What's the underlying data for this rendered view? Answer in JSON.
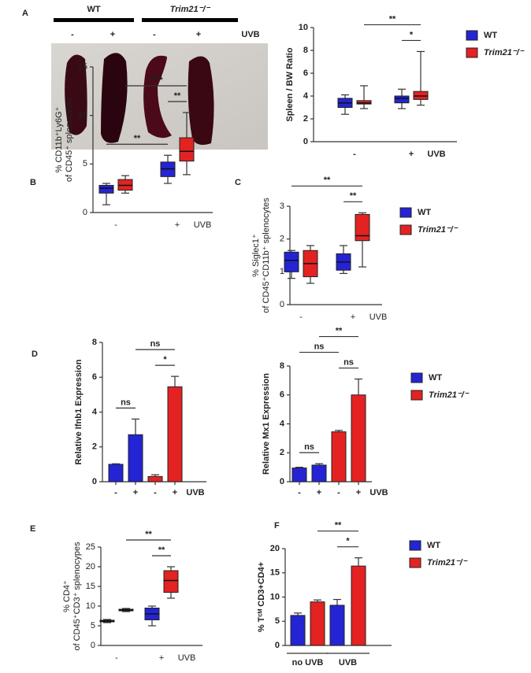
{
  "photo": {
    "groups": [
      "WT",
      "Trim21⁻/⁻"
    ],
    "treatments": [
      "-",
      "+",
      "-",
      "+"
    ],
    "label": "UVB"
  },
  "chart_data": [
    {
      "panel": "A",
      "type": "box",
      "ylabel": [
        "Spleen / BW Ratio"
      ],
      "xlabel": "UVB",
      "categories": [
        "-",
        "+"
      ],
      "ylim": [
        0,
        10
      ],
      "yticks": [
        0,
        2,
        4,
        6,
        8,
        10
      ],
      "series": [
        {
          "color": "#2424d4",
          "boxes": [
            [
              2.4,
              3.0,
              3.4,
              3.8,
              4.1
            ],
            [
              2.9,
              3.4,
              3.8,
              4.0,
              4.6
            ]
          ]
        },
        {
          "color": "#e42222",
          "boxes": [
            [
              2.9,
              3.3,
              3.4,
              3.6,
              4.9
            ],
            [
              3.2,
              3.7,
              4.0,
              4.4,
              7.9
            ]
          ]
        }
      ],
      "legend": [
        {
          "name": "WT",
          "color": "#2424d4"
        },
        {
          "name": "Trim21⁻/⁻",
          "color": "#e42222"
        }
      ],
      "annotations": [
        {
          "text": "*",
          "span": [
            2,
            3
          ]
        },
        {
          "text": "**",
          "span": [
            1,
            3
          ]
        }
      ]
    },
    {
      "panel": "B",
      "type": "box",
      "ylabel": [
        "% CD11b⁺Ly6G⁺",
        "of CD45⁺ splenocytes"
      ],
      "xlabel": "UVB",
      "categories": [
        "-",
        "+"
      ],
      "ylim": [
        0,
        15
      ],
      "yticks": [
        0,
        5,
        10,
        15
      ],
      "series": [
        {
          "color": "#2424d4",
          "boxes": [
            [
              0.8,
              2.0,
              2.5,
              2.8,
              3.0
            ],
            [
              3.0,
              3.7,
              4.5,
              5.2,
              5.9
            ]
          ]
        },
        {
          "color": "#e42222",
          "boxes": [
            [
              2.0,
              2.3,
              2.8,
              3.4,
              3.8
            ],
            [
              3.9,
              5.3,
              6.3,
              7.7,
              10.3
            ]
          ]
        }
      ],
      "annotations": [
        {
          "text": "**",
          "span": [
            0,
            2
          ]
        },
        {
          "text": "**",
          "span": [
            2,
            3
          ]
        },
        {
          "text": "****",
          "span": [
            1,
            3
          ]
        }
      ]
    },
    {
      "panel": "C",
      "type": "box",
      "ylabel": [
        "% Siglec1⁺",
        "of CD45⁺CD11b⁺ splenocytes"
      ],
      "xlabel": "UVB",
      "categories": [
        "-",
        "+"
      ],
      "ylim": [
        0,
        3
      ],
      "yticks": [
        0,
        1,
        2,
        3
      ],
      "series": [
        {
          "color": "#2424d4",
          "boxes": [
            [
              0.8,
              1.0,
              1.35,
              1.6,
              1.65
            ],
            [
              0.95,
              1.05,
              1.3,
              1.55,
              1.8
            ]
          ]
        },
        {
          "color": "#e42222",
          "boxes": [
            [
              0.65,
              0.85,
              1.25,
              1.65,
              1.8
            ],
            [
              1.15,
              1.95,
              2.1,
              2.75,
              2.8
            ]
          ]
        }
      ],
      "legend": [
        {
          "name": "WT",
          "color": "#2424d4"
        },
        {
          "name": "Trim21⁻/⁻",
          "color": "#e42222"
        }
      ],
      "annotations": [
        {
          "text": "**",
          "span": [
            2,
            3
          ]
        },
        {
          "text": "**",
          "span": [
            0,
            3
          ]
        }
      ]
    },
    {
      "panel": "D",
      "type": "bar",
      "ylabel": [
        "Relative Ifnb1 Expression"
      ],
      "xlabel": "UVB",
      "categories": [
        "-",
        "+",
        "-",
        "+"
      ],
      "ylim": [
        0,
        8
      ],
      "yticks": [
        0,
        2,
        4,
        6,
        8
      ],
      "values": [
        1.0,
        2.7,
        0.3,
        5.45
      ],
      "errors": [
        0.03,
        0.9,
        0.1,
        0.6
      ],
      "colors": [
        "#2424d4",
        "#2424d4",
        "#e42222",
        "#e42222"
      ],
      "annotations": [
        {
          "text": "ns",
          "span": [
            0,
            1
          ]
        },
        {
          "text": "*",
          "span": [
            2,
            3
          ]
        },
        {
          "text": "ns",
          "span": [
            1,
            3
          ]
        }
      ]
    },
    {
      "type": "bar",
      "ylabel": [
        "Relative Mx1 Expression"
      ],
      "xlabel": "UVB",
      "categories": [
        "-",
        "+",
        "-",
        "+"
      ],
      "ylim": [
        0,
        8
      ],
      "yticks": [
        0,
        2,
        4,
        6,
        8
      ],
      "values": [
        0.95,
        1.15,
        3.45,
        6.0
      ],
      "errors": [
        0.05,
        0.1,
        0.1,
        1.1
      ],
      "colors": [
        "#2424d4",
        "#2424d4",
        "#e42222",
        "#e42222"
      ],
      "legend": [
        {
          "name": "WT",
          "color": "#2424d4"
        },
        {
          "name": "Trim21⁻/⁻",
          "color": "#e42222"
        }
      ],
      "annotations": [
        {
          "text": "ns",
          "span": [
            0,
            1
          ]
        },
        {
          "text": "ns",
          "span": [
            2,
            3
          ]
        },
        {
          "text": "ns",
          "span": [
            0,
            2
          ]
        },
        {
          "text": "**",
          "span": [
            1,
            3
          ]
        }
      ]
    },
    {
      "panel": "E",
      "type": "box",
      "ylabel": [
        "% CD4⁺",
        "of CD45⁺CD3⁺ splenocypes"
      ],
      "xlabel": "UVB",
      "categories": [
        "-",
        "+"
      ],
      "ylim": [
        0,
        25
      ],
      "yticks": [
        0,
        5,
        10,
        15,
        20,
        25
      ],
      "series": [
        {
          "color": "#2424d4",
          "boxes": [
            [
              5.8,
              6.0,
              6.2,
              6.4,
              6.6
            ],
            [
              5.0,
              6.5,
              8.0,
              9.5,
              10.0
            ]
          ]
        },
        {
          "color": "#e42222",
          "boxes": [
            [
              8.6,
              8.8,
              9.0,
              9.2,
              9.4
            ],
            [
              12.0,
              13.5,
              16.5,
              19.0,
              20.0
            ]
          ]
        }
      ],
      "annotations": [
        {
          "text": "**",
          "span": [
            2,
            3
          ]
        },
        {
          "text": "**",
          "span": [
            1,
            3
          ]
        }
      ]
    },
    {
      "panel": "F",
      "type": "bar",
      "ylabel": [
        "% Tᶜᴹ CD3+CD4+"
      ],
      "groups": [
        "no UVB",
        "UVB"
      ],
      "ylim": [
        0,
        20
      ],
      "yticks": [
        0,
        5,
        10,
        15,
        20
      ],
      "values": [
        6.2,
        9.0,
        8.3,
        16.4
      ],
      "errors": [
        0.5,
        0.4,
        1.2,
        1.7
      ],
      "colors": [
        "#2424d4",
        "#e42222",
        "#2424d4",
        "#e42222"
      ],
      "legend": [
        {
          "name": "WT",
          "color": "#2424d4"
        },
        {
          "name": "Trim21⁻/⁻",
          "color": "#e42222"
        }
      ],
      "annotations": [
        {
          "text": "*",
          "span": [
            2,
            3
          ]
        },
        {
          "text": "**",
          "span": [
            1,
            3
          ]
        }
      ]
    }
  ]
}
